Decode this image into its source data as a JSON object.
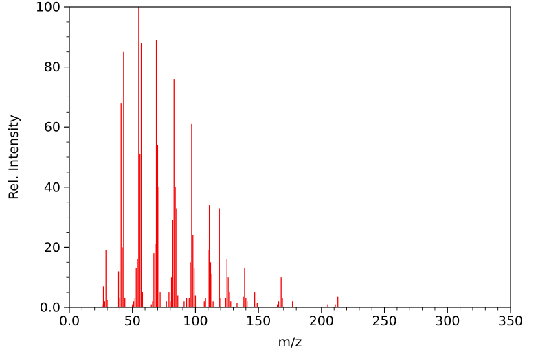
{
  "chart_data": {
    "type": "bar",
    "subtype": "mass-spectrum-stick-plot",
    "title": "",
    "xlabel": "m/z",
    "ylabel": "Rel. Intensity",
    "xlim": [
      0,
      350
    ],
    "ylim": [
      0,
      100
    ],
    "grid": false,
    "legend": null,
    "series_color": "#f40000",
    "axis_color": "#000000",
    "x_ticks": {
      "major": [
        0,
        50,
        100,
        150,
        200,
        250,
        300,
        350
      ],
      "major_labels": [
        "0.0",
        "50",
        "100",
        "150",
        "200",
        "250",
        "300",
        "350"
      ],
      "minor_step": 10
    },
    "y_ticks": {
      "major": [
        0,
        20,
        40,
        60,
        80,
        100
      ],
      "major_labels": [
        "0.0",
        "20",
        "40",
        "60",
        "80",
        "100"
      ],
      "minor_step": 5
    },
    "peaks": [
      [
        26,
        1
      ],
      [
        27,
        7
      ],
      [
        28,
        2
      ],
      [
        29,
        19
      ],
      [
        30,
        2.5
      ],
      [
        39,
        12
      ],
      [
        40,
        3
      ],
      [
        41,
        68
      ],
      [
        42,
        20
      ],
      [
        43,
        85
      ],
      [
        44,
        3
      ],
      [
        50,
        1
      ],
      [
        51,
        2
      ],
      [
        52,
        3
      ],
      [
        53,
        13
      ],
      [
        54,
        16
      ],
      [
        55,
        100
      ],
      [
        56,
        51
      ],
      [
        57,
        88
      ],
      [
        58,
        5
      ],
      [
        65,
        1
      ],
      [
        66,
        2
      ],
      [
        67,
        18
      ],
      [
        68,
        21
      ],
      [
        69,
        89
      ],
      [
        70,
        54
      ],
      [
        71,
        40
      ],
      [
        72,
        5
      ],
      [
        77,
        2
      ],
      [
        79,
        5
      ],
      [
        80,
        2
      ],
      [
        81,
        10
      ],
      [
        82,
        29
      ],
      [
        83,
        76
      ],
      [
        84,
        40
      ],
      [
        85,
        33
      ],
      [
        86,
        4
      ],
      [
        91,
        2
      ],
      [
        93,
        3
      ],
      [
        95,
        3
      ],
      [
        96,
        15
      ],
      [
        97,
        61
      ],
      [
        98,
        24
      ],
      [
        99,
        13
      ],
      [
        100,
        4
      ],
      [
        107,
        2
      ],
      [
        108,
        3
      ],
      [
        110,
        19
      ],
      [
        111,
        34
      ],
      [
        112,
        15
      ],
      [
        113,
        11
      ],
      [
        114,
        2
      ],
      [
        119,
        33
      ],
      [
        120,
        3
      ],
      [
        124,
        3
      ],
      [
        125,
        16
      ],
      [
        126,
        10
      ],
      [
        127,
        5
      ],
      [
        128,
        2
      ],
      [
        133,
        1.5
      ],
      [
        138,
        3.5
      ],
      [
        139,
        13
      ],
      [
        140,
        3
      ],
      [
        141,
        2
      ],
      [
        147,
        5
      ],
      [
        149,
        1.5
      ],
      [
        165,
        1
      ],
      [
        166,
        2
      ],
      [
        168,
        10
      ],
      [
        169,
        3
      ],
      [
        177,
        2
      ],
      [
        205,
        1
      ],
      [
        211,
        1
      ],
      [
        213,
        3.5
      ]
    ]
  }
}
